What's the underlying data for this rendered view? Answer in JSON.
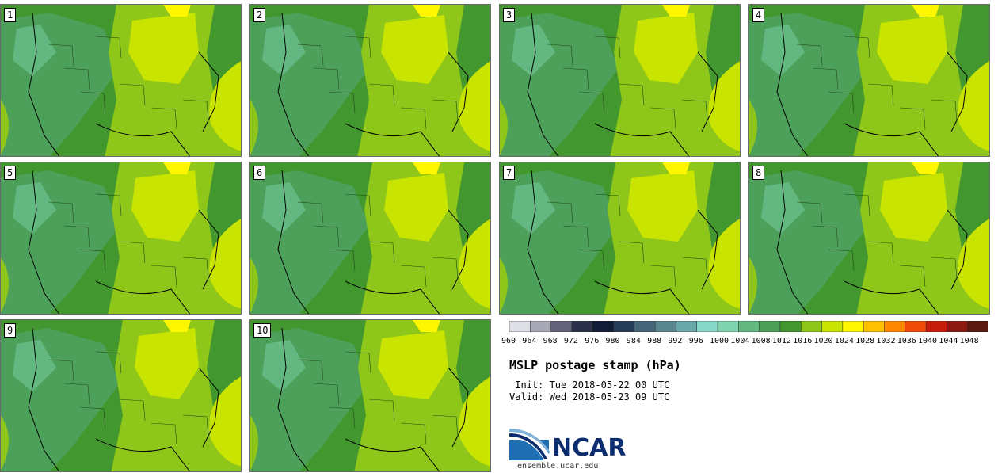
{
  "panels": [
    {
      "label": "1"
    },
    {
      "label": "2"
    },
    {
      "label": "3"
    },
    {
      "label": "4"
    },
    {
      "label": "5"
    },
    {
      "label": "6"
    },
    {
      "label": "7"
    },
    {
      "label": "8"
    },
    {
      "label": "9"
    },
    {
      "label": "10"
    }
  ],
  "colorbar": {
    "ticks": [
      "960",
      "964",
      "968",
      "972",
      "976",
      "980",
      "984",
      "988",
      "992",
      "996",
      "1000",
      "1004",
      "1008",
      "1012",
      "1016",
      "1020",
      "1024",
      "1028",
      "1032",
      "1036",
      "1040",
      "1044",
      "1048"
    ],
    "colors": [
      "#dfe0e6",
      "#a8a9b6",
      "#636479",
      "#2a3148",
      "#111d36",
      "#263c58",
      "#46677a",
      "#5a8891",
      "#6aa7a9",
      "#85d8c6",
      "#7fd3b0",
      "#63b781",
      "#4da05a",
      "#43972f",
      "#8ec71a",
      "#c9e400",
      "#fff600",
      "#ffc000",
      "#ff8800",
      "#ef4c07",
      "#c71e0b",
      "#8c1a12",
      "#5a1a10"
    ]
  },
  "title": "MSLP postage stamp (hPa)",
  "init": " Init: Tue 2018-05-22 00 UTC",
  "valid": "Valid: Wed 2018-05-23 09 UTC",
  "logo": {
    "name": "NCAR",
    "url": "ensemble.ucar.edu"
  }
}
